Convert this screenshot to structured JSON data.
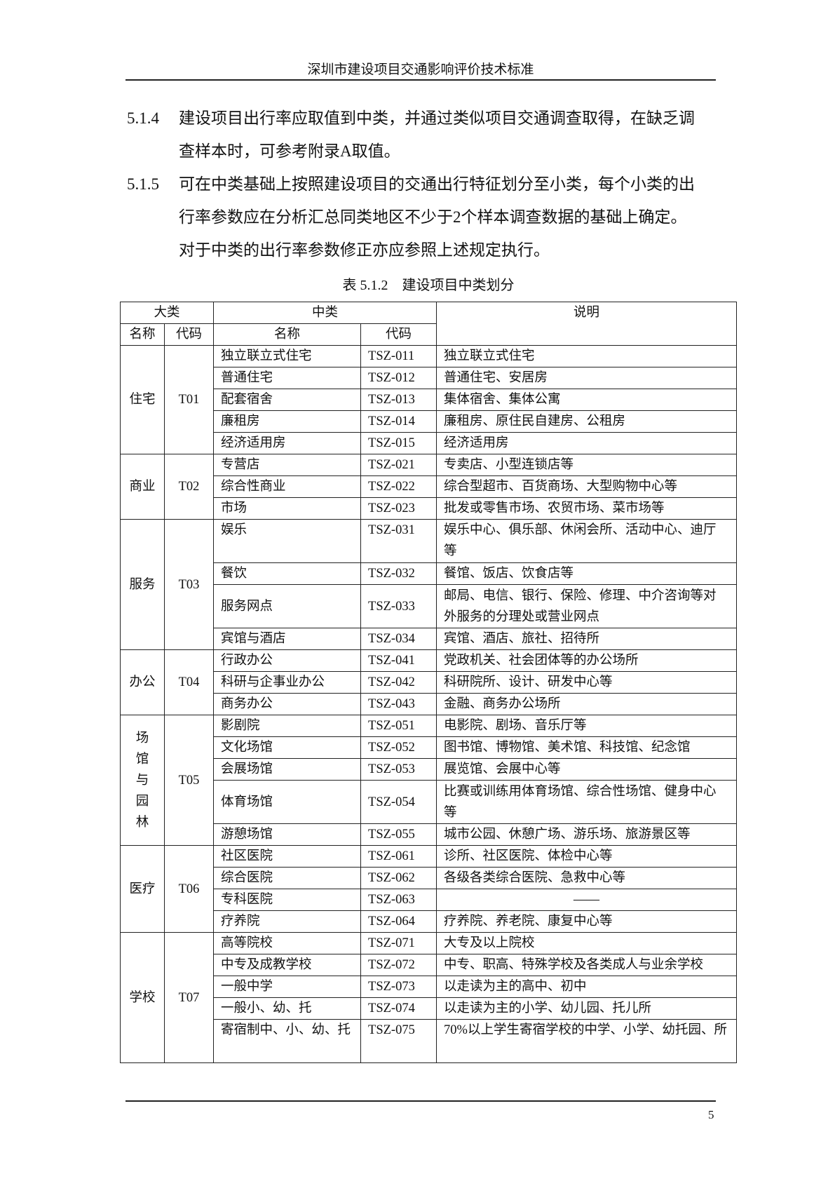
{
  "header": {
    "title": "深圳市建设项目交通影响评价技术标准"
  },
  "clauses": [
    {
      "number": "5.1.4",
      "lines": [
        "建设项目出行率应取值到中类，并通过类似项目交通调查取得，在缺乏调",
        "查样本时，可参考附录A取值。"
      ]
    },
    {
      "number": "5.1.5",
      "lines": [
        "可在中类基础上按照建设项目的交通出行特征划分至小类，每个小类的出",
        "行率参数应在分析汇总同类地区不少于2个样本调查数据的基础上确定。",
        "对于中类的出行率参数修正亦应参照上述规定执行。"
      ]
    }
  ],
  "table": {
    "caption": "表 5.1.2　建设项目中类划分",
    "headers": {
      "major": "大类",
      "medium": "中类",
      "description": "说明",
      "name": "名称",
      "code": "代码"
    },
    "groups": [
      {
        "name": "住宅",
        "code": "T01",
        "rows": [
          {
            "name": "独立联立式住宅",
            "code": "TSZ-011",
            "desc": "独立联立式住宅"
          },
          {
            "name": "普通住宅",
            "code": "TSZ-012",
            "desc": "普通住宅、安居房"
          },
          {
            "name": "配套宿舍",
            "code": "TSZ-013",
            "desc": "集体宿舍、集体公寓"
          },
          {
            "name": "廉租房",
            "code": "TSZ-014",
            "desc": "廉租房、原住民自建房、公租房"
          },
          {
            "name": "经济适用房",
            "code": "TSZ-015",
            "desc": "经济适用房"
          }
        ]
      },
      {
        "name": "商业",
        "code": "T02",
        "rows": [
          {
            "name": "专营店",
            "code": "TSZ-021",
            "desc": "专卖店、小型连锁店等"
          },
          {
            "name": "综合性商业",
            "code": "TSZ-022",
            "desc": "综合型超市、百货商场、大型购物中心等"
          },
          {
            "name": "市场",
            "code": "TSZ-023",
            "desc": "批发或零售市场、农贸市场、菜市场等"
          }
        ]
      },
      {
        "name": "服务",
        "code": "T03",
        "rows": [
          {
            "name": "娱乐",
            "code": "TSZ-031",
            "desc": "娱乐中心、俱乐部、休闲会所、活动中心、迪厅等",
            "double": true,
            "top": true
          },
          {
            "name": "餐饮",
            "code": "TSZ-032",
            "desc": "餐馆、饭店、饮食店等"
          },
          {
            "name": "服务网点",
            "code": "TSZ-033",
            "desc": "邮局、电信、银行、保险、修理、中介咨询等对外服务的分理处或营业网点",
            "double": true
          },
          {
            "name": "宾馆与酒店",
            "code": "TSZ-034",
            "desc": "宾馆、酒店、旅社、招待所"
          }
        ]
      },
      {
        "name": "办公",
        "code": "T04",
        "rows": [
          {
            "name": "行政办公",
            "code": "TSZ-041",
            "desc": "党政机关、社会团体等的办公场所"
          },
          {
            "name": "科研与企事业办公",
            "code": "TSZ-042",
            "desc": "科研院所、设计、研发中心等"
          },
          {
            "name": "商务办公",
            "code": "TSZ-043",
            "desc": "金融、商务办公场所"
          }
        ]
      },
      {
        "name": "场馆与园林",
        "code": "T05",
        "rows": [
          {
            "name": "影剧院",
            "code": "TSZ-051",
            "desc": "电影院、剧场、音乐厅等"
          },
          {
            "name": "文化场馆",
            "code": "TSZ-052",
            "desc": "图书馆、博物馆、美术馆、科技馆、纪念馆"
          },
          {
            "name": "会展场馆",
            "code": "TSZ-053",
            "desc": "展览馆、会展中心等"
          },
          {
            "name": "体育场馆",
            "code": "TSZ-054",
            "desc": "比赛或训练用体育场馆、综合性场馆、健身中心等",
            "double": true
          },
          {
            "name": "游憩场馆",
            "code": "TSZ-055",
            "desc": "城市公园、休憩广场、游乐场、旅游景区等"
          }
        ]
      },
      {
        "name": "医疗",
        "code": "T06",
        "rows": [
          {
            "name": "社区医院",
            "code": "TSZ-061",
            "desc": "诊所、社区医院、体检中心等"
          },
          {
            "name": "综合医院",
            "code": "TSZ-062",
            "desc": "各级各类综合医院、急救中心等"
          },
          {
            "name": "专科医院",
            "code": "TSZ-063",
            "desc": "——",
            "center": true
          },
          {
            "name": "疗养院",
            "code": "TSZ-064",
            "desc": "疗养院、养老院、康复中心等"
          }
        ]
      },
      {
        "name": "学校",
        "code": "T07",
        "rows": [
          {
            "name": "高等院校",
            "code": "TSZ-071",
            "desc": "大专及以上院校"
          },
          {
            "name": "中专及成教学校",
            "code": "TSZ-072",
            "desc": "中专、职高、特殊学校及各类成人与业余学校"
          },
          {
            "name": "一般中学",
            "code": "TSZ-073",
            "desc": "以走读为主的高中、初中"
          },
          {
            "name": "一般小、幼、托",
            "code": "TSZ-074",
            "desc": "以走读为主的小学、幼儿园、托儿所"
          },
          {
            "name": "寄宿制中、小、幼、托",
            "code": "TSZ-075",
            "desc": "70%以上学生寄宿学校的中学、小学、幼托园、所",
            "double": true,
            "top": true
          }
        ]
      }
    ]
  },
  "footer": {
    "page_number": "5"
  }
}
